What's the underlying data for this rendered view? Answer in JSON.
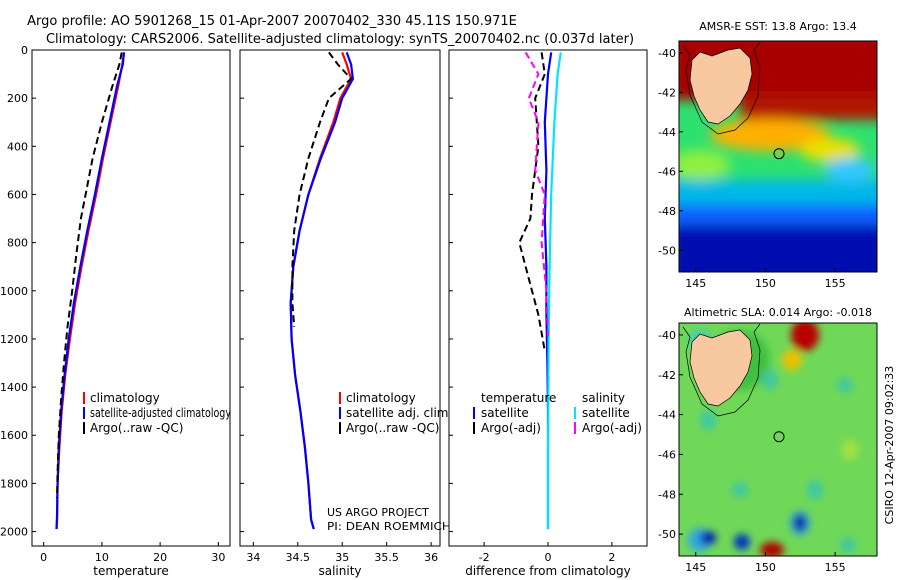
{
  "header": {
    "title_line1": "Argo profile: AO 5901268_15 01-Apr-2007 20070402_330 45.11S 150.971E",
    "title_line2": "Climatology: CARS2006. Satellite-adjusted climatology: synTS_20070402.nc (0.037d later)"
  },
  "footer": {
    "credit_line1": "US ARGO PROJECT",
    "credit_line2": "PI: DEAN ROEMMICH",
    "stamp": "CSIRO 12-Apr-2007 09:02:33"
  },
  "colors": {
    "climatology": "#ff0000",
    "satellite": "#0000ff",
    "argo": "#000000",
    "satellite_salinity_diff": "#00e5ff",
    "argo_salinity_diff": "#ff00ff",
    "land": "#f8c8a0"
  },
  "chart_data": [
    {
      "type": "line",
      "id": "temperature",
      "xlabel": "temperature",
      "ylabel": "",
      "xlim": [
        -2,
        32
      ],
      "ylim": [
        2060,
        0
      ],
      "xticks": [
        0,
        10,
        20,
        30
      ],
      "yticks": [
        0,
        200,
        400,
        600,
        800,
        1000,
        1200,
        1400,
        1600,
        1800,
        2000
      ],
      "legend": [
        "climatology",
        "satellite-adjusted climatology",
        "Argo(..raw -QC)"
      ],
      "series": [
        {
          "name": "climatology",
          "style": "solid",
          "color": "#ff0000",
          "x": [
            13.8,
            13.5,
            12.8,
            11.5,
            10.2,
            9.0,
            7.7,
            6.5,
            5.4,
            4.5,
            3.7,
            3.1,
            2.7,
            2.4,
            2.3,
            2.2
          ],
          "y": [
            10,
            60,
            150,
            300,
            450,
            600,
            750,
            900,
            1050,
            1200,
            1350,
            1500,
            1650,
            1800,
            1950,
            1990
          ]
        },
        {
          "name": "satellite-adjusted climatology",
          "style": "solid",
          "color": "#0000ff",
          "x": [
            13.8,
            13.6,
            12.6,
            11.3,
            10.0,
            8.8,
            7.5,
            6.3,
            5.2,
            4.3,
            3.6,
            3.0,
            2.6,
            2.4,
            2.3,
            2.2
          ],
          "y": [
            10,
            60,
            150,
            300,
            450,
            600,
            750,
            900,
            1050,
            1200,
            1350,
            1500,
            1650,
            1800,
            1950,
            1990
          ]
        },
        {
          "name": "Argo(..raw -QC)",
          "style": "dashed",
          "color": "#000000",
          "x": [
            13.4,
            13.0,
            11.8,
            10.0,
            8.4,
            7.2,
            6.4,
            5.6,
            4.9,
            4.1,
            3.5,
            3.0,
            2.6,
            2.4,
            2.3
          ],
          "y": [
            10,
            60,
            150,
            300,
            450,
            600,
            700,
            850,
            1000,
            1150,
            1300,
            1450,
            1600,
            1750,
            1860
          ]
        }
      ]
    },
    {
      "type": "line",
      "id": "salinity",
      "xlabel": "salinity",
      "ylabel": "",
      "xlim": [
        33.85,
        36.1
      ],
      "ylim": [
        2060,
        0
      ],
      "xticks": [
        34,
        34.5,
        35,
        35.5,
        36
      ],
      "yticks": [
        0,
        200,
        400,
        600,
        800,
        1000,
        1200,
        1400,
        1600,
        1800,
        2000
      ],
      "legend": [
        "climatology",
        "satellite adj. clim.",
        "Argo(..raw -QC)"
      ],
      "series": [
        {
          "name": "climatology",
          "style": "solid",
          "color": "#ff0000",
          "x": [
            35.0,
            35.05,
            35.1,
            34.98,
            34.9,
            34.75,
            34.62,
            34.52,
            34.45,
            34.42,
            34.43,
            34.47,
            34.53,
            34.58,
            34.62,
            34.65,
            34.68
          ],
          "y": [
            10,
            60,
            120,
            200,
            300,
            450,
            600,
            750,
            900,
            1050,
            1200,
            1350,
            1500,
            1650,
            1800,
            1950,
            1990
          ]
        },
        {
          "name": "satellite adj. clim.",
          "style": "solid",
          "color": "#0000ff",
          "x": [
            35.05,
            35.1,
            35.12,
            35.0,
            34.92,
            34.76,
            34.62,
            34.52,
            34.45,
            34.42,
            34.43,
            34.47,
            34.53,
            34.58,
            34.62,
            34.65,
            34.68
          ],
          "y": [
            10,
            60,
            120,
            200,
            300,
            450,
            600,
            750,
            900,
            1050,
            1200,
            1350,
            1500,
            1650,
            1800,
            1950,
            1990
          ]
        },
        {
          "name": "Argo(..raw -QC)",
          "style": "dashed",
          "color": "#000000",
          "x": [
            34.85,
            34.95,
            35.1,
            34.85,
            34.75,
            34.62,
            34.52,
            34.46,
            34.44,
            34.44,
            34.46
          ],
          "y": [
            10,
            60,
            120,
            200,
            300,
            450,
            600,
            750,
            900,
            1050,
            1150
          ]
        }
      ]
    },
    {
      "type": "line",
      "id": "difference",
      "xlabel": "difference from climatology",
      "ylabel": "",
      "xlim": [
        -3.1,
        3.1
      ],
      "ylim": [
        2060,
        0
      ],
      "xticks": [
        -2,
        0,
        2
      ],
      "yticks": [
        0,
        200,
        400,
        600,
        800,
        1000,
        1200,
        1400,
        1600,
        1800,
        2000
      ],
      "legend": [
        "temperature",
        "satellite",
        "Argo(-adj)",
        "salinity",
        "satellite",
        "Argo(-adj)"
      ],
      "series": [
        {
          "name": "temperature satellite",
          "style": "solid",
          "color": "#0000ff",
          "x": [
            0.1,
            0.0,
            -0.1,
            -0.05,
            -0.1,
            -0.05,
            -0.05,
            -0.02,
            0.0,
            0.0,
            0.0,
            0.0
          ],
          "y": [
            10,
            100,
            300,
            500,
            700,
            900,
            1100,
            1300,
            1500,
            1700,
            1900,
            1990
          ]
        },
        {
          "name": "temperature Argo(-adj)",
          "style": "dashed",
          "color": "#000000",
          "x": [
            -0.2,
            -0.1,
            -0.4,
            -0.3,
            -0.5,
            -0.55,
            -0.9,
            -0.6,
            -0.3,
            -0.1
          ],
          "y": [
            10,
            100,
            200,
            400,
            600,
            700,
            800,
            950,
            1100,
            1250
          ]
        },
        {
          "name": "salinity satellite",
          "style": "solid",
          "color": "#00e5ff",
          "x": [
            0.4,
            0.3,
            0.2,
            0.1,
            0.05,
            0.02,
            0.01,
            0.0,
            0.0,
            0.0
          ],
          "y": [
            10,
            100,
            300,
            600,
            900,
            1200,
            1500,
            1700,
            1900,
            1990
          ]
        },
        {
          "name": "salinity Argo(-adj)",
          "style": "dashed",
          "color": "#ff00ff",
          "x": [
            -0.7,
            -0.3,
            -0.6,
            -0.3,
            -0.4,
            -0.1,
            -0.2,
            -0.05,
            0.0
          ],
          "y": [
            10,
            100,
            200,
            300,
            500,
            600,
            800,
            1000,
            1200
          ]
        }
      ]
    },
    {
      "type": "heatmap",
      "id": "sst-map",
      "title": "AMSR-E SST: 13.8 Argo: 13.4",
      "xlim": [
        143.8,
        158
      ],
      "ylim": [
        -51.1,
        -39.4
      ],
      "xticks": [
        145,
        150,
        155
      ],
      "yticks": [
        -40,
        -42,
        -44,
        -46,
        -48,
        -50
      ],
      "profile_location": {
        "lon": 150.971,
        "lat": -45.11
      }
    },
    {
      "type": "heatmap",
      "id": "sla-map",
      "title": "Altimetric SLA: 0.014 Argo: -0.018",
      "xlim": [
        143.8,
        158
      ],
      "ylim": [
        -51.1,
        -39.4
      ],
      "xticks": [
        145,
        150,
        155
      ],
      "yticks": [
        -40,
        -42,
        -44,
        -46,
        -48,
        -50
      ],
      "profile_location": {
        "lon": 150.971,
        "lat": -45.11
      }
    }
  ]
}
